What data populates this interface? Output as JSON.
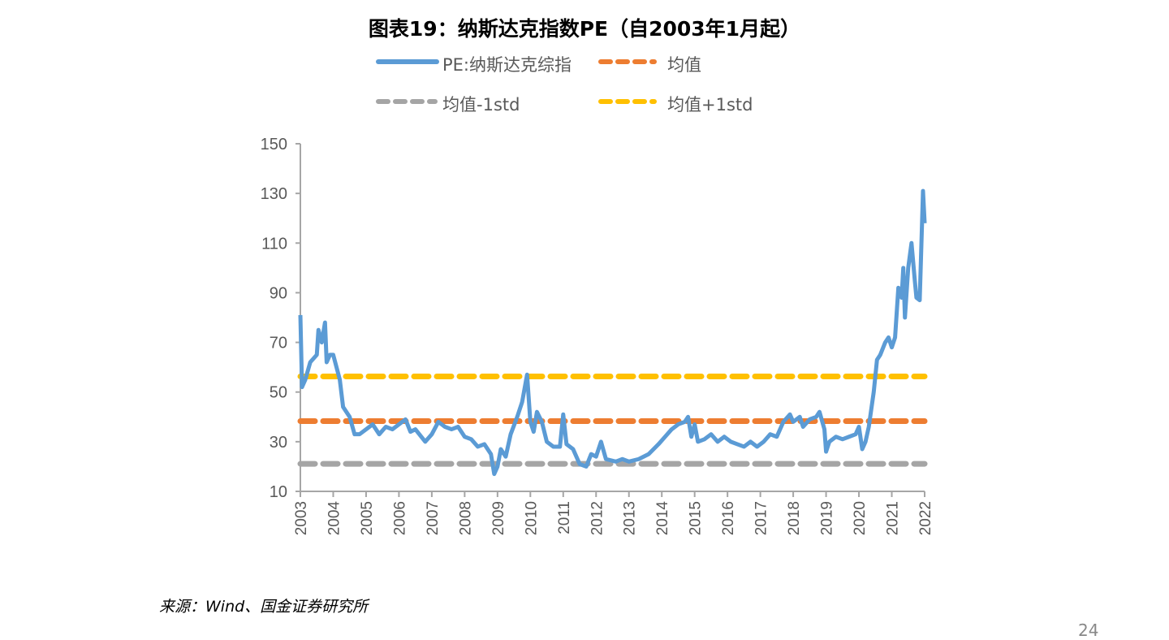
{
  "chart_data": {
    "type": "line",
    "title": "图表19：纳斯达克指数PE（自2003年1月起）",
    "xlabel": "",
    "ylabel": "",
    "xlim": [
      2003,
      2022
    ],
    "ylim": [
      10,
      150
    ],
    "yticks": [
      10,
      30,
      50,
      70,
      90,
      110,
      130,
      150
    ],
    "xticks": [
      "2003",
      "2004",
      "2005",
      "2006",
      "2007",
      "2008",
      "2009",
      "2010",
      "2011",
      "2012",
      "2013",
      "2014",
      "2015",
      "2016",
      "2017",
      "2018",
      "2019",
      "2020",
      "2021",
      "2022"
    ],
    "grid": false,
    "legend_placement": "top",
    "series": [
      {
        "name": "PE:纳斯达克综指",
        "color": "#5B9BD5",
        "style": "solid",
        "points": [
          [
            2003.0,
            81
          ],
          [
            2003.05,
            52
          ],
          [
            2003.15,
            55
          ],
          [
            2003.3,
            62
          ],
          [
            2003.5,
            65
          ],
          [
            2003.55,
            75
          ],
          [
            2003.65,
            70
          ],
          [
            2003.75,
            78
          ],
          [
            2003.8,
            62
          ],
          [
            2003.9,
            65
          ],
          [
            2004.0,
            65
          ],
          [
            2004.2,
            55
          ],
          [
            2004.3,
            44
          ],
          [
            2004.5,
            40
          ],
          [
            2004.65,
            33
          ],
          [
            2004.8,
            33
          ],
          [
            2005.0,
            35
          ],
          [
            2005.2,
            37
          ],
          [
            2005.4,
            33
          ],
          [
            2005.6,
            36
          ],
          [
            2005.8,
            35
          ],
          [
            2006.0,
            37
          ],
          [
            2006.2,
            39
          ],
          [
            2006.35,
            34
          ],
          [
            2006.5,
            35
          ],
          [
            2006.8,
            30
          ],
          [
            2007.0,
            33
          ],
          [
            2007.2,
            38
          ],
          [
            2007.4,
            36
          ],
          [
            2007.6,
            35
          ],
          [
            2007.8,
            36
          ],
          [
            2008.0,
            32
          ],
          [
            2008.2,
            31
          ],
          [
            2008.4,
            28
          ],
          [
            2008.6,
            29
          ],
          [
            2008.8,
            25
          ],
          [
            2008.9,
            17
          ],
          [
            2009.0,
            20
          ],
          [
            2009.1,
            27
          ],
          [
            2009.25,
            24
          ],
          [
            2009.4,
            33
          ],
          [
            2009.6,
            40
          ],
          [
            2009.75,
            46
          ],
          [
            2009.9,
            57
          ],
          [
            2010.0,
            38
          ],
          [
            2010.1,
            34
          ],
          [
            2010.2,
            42
          ],
          [
            2010.35,
            38
          ],
          [
            2010.5,
            30
          ],
          [
            2010.7,
            28
          ],
          [
            2010.9,
            28
          ],
          [
            2011.0,
            41
          ],
          [
            2011.1,
            29
          ],
          [
            2011.3,
            27
          ],
          [
            2011.5,
            21
          ],
          [
            2011.7,
            20
          ],
          [
            2011.85,
            25
          ],
          [
            2012.0,
            24
          ],
          [
            2012.15,
            30
          ],
          [
            2012.3,
            23
          ],
          [
            2012.6,
            22
          ],
          [
            2012.8,
            23
          ],
          [
            2013.0,
            22
          ],
          [
            2013.3,
            23
          ],
          [
            2013.6,
            25
          ],
          [
            2013.9,
            29
          ],
          [
            2014.1,
            32
          ],
          [
            2014.3,
            35
          ],
          [
            2014.5,
            37
          ],
          [
            2014.7,
            38
          ],
          [
            2014.8,
            40
          ],
          [
            2014.9,
            32
          ],
          [
            2015.0,
            37
          ],
          [
            2015.1,
            30
          ],
          [
            2015.3,
            31
          ],
          [
            2015.5,
            33
          ],
          [
            2015.7,
            30
          ],
          [
            2015.9,
            32
          ],
          [
            2016.1,
            30
          ],
          [
            2016.3,
            29
          ],
          [
            2016.5,
            28
          ],
          [
            2016.7,
            30
          ],
          [
            2016.9,
            28
          ],
          [
            2017.1,
            30
          ],
          [
            2017.3,
            33
          ],
          [
            2017.5,
            32
          ],
          [
            2017.7,
            38
          ],
          [
            2017.9,
            41
          ],
          [
            2018.0,
            38
          ],
          [
            2018.2,
            40
          ],
          [
            2018.3,
            36
          ],
          [
            2018.5,
            39
          ],
          [
            2018.7,
            40
          ],
          [
            2018.8,
            42
          ],
          [
            2018.95,
            35
          ],
          [
            2019.0,
            26
          ],
          [
            2019.1,
            30
          ],
          [
            2019.3,
            32
          ],
          [
            2019.5,
            31
          ],
          [
            2019.7,
            32
          ],
          [
            2019.9,
            33
          ],
          [
            2020.0,
            36
          ],
          [
            2020.1,
            27
          ],
          [
            2020.2,
            30
          ],
          [
            2020.3,
            36
          ],
          [
            2020.45,
            50
          ],
          [
            2020.55,
            63
          ],
          [
            2020.65,
            65
          ],
          [
            2020.8,
            70
          ],
          [
            2020.9,
            72
          ],
          [
            2021.0,
            68
          ],
          [
            2021.1,
            72
          ],
          [
            2021.2,
            92
          ],
          [
            2021.3,
            88
          ],
          [
            2021.35,
            100
          ],
          [
            2021.4,
            80
          ],
          [
            2021.5,
            100
          ],
          [
            2021.6,
            110
          ],
          [
            2021.7,
            95
          ],
          [
            2021.75,
            88
          ],
          [
            2021.85,
            87
          ],
          [
            2021.95,
            131
          ],
          [
            2022.0,
            118
          ]
        ]
      },
      {
        "name": "均值",
        "color": "#ED7D31",
        "style": "dashed",
        "value": 38.3
      },
      {
        "name": "均值-1std",
        "color": "#A5A5A5",
        "style": "dashed",
        "value": 21.1
      },
      {
        "name": "均值+1std",
        "color": "#FFC000",
        "style": "dashed",
        "value": 56.3
      }
    ]
  },
  "footer": {
    "source": "来源：Wind、国金证券研究所",
    "page_number": "24"
  }
}
